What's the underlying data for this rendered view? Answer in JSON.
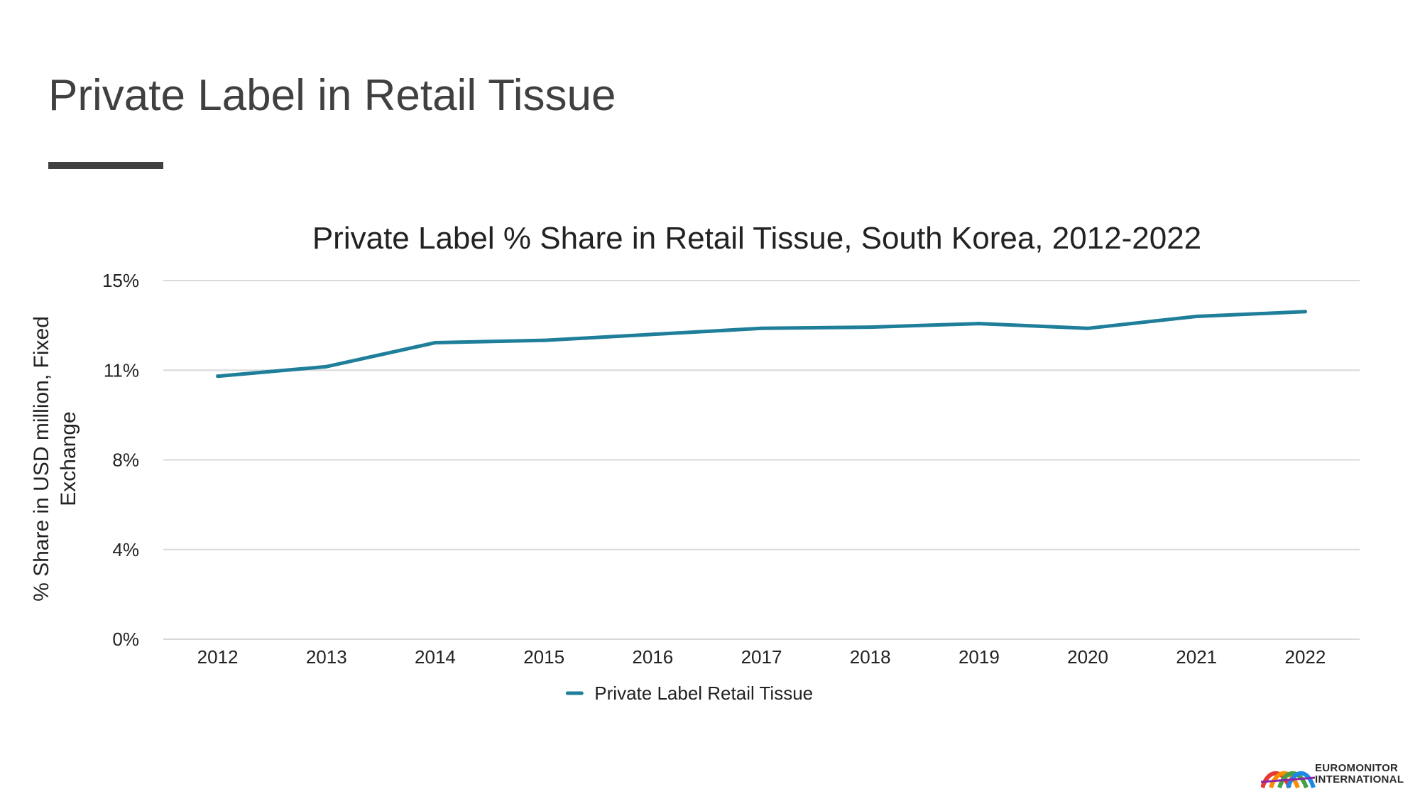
{
  "slide": {
    "title": "Private Label in Retail Tissue"
  },
  "colors": {
    "series_line": "#1f7f9a",
    "gridline": "#d9d9d9",
    "title_text": "#404040",
    "axis_text": "#222222"
  },
  "chart_data": {
    "type": "line",
    "title": "Private Label % Share in Retail Tissue, South Korea, 2012-2022",
    "ylabel": "% Share in USD million, Fixed Exchange",
    "xlabel": "",
    "categories": [
      "2012",
      "2013",
      "2014",
      "2015",
      "2016",
      "2017",
      "2018",
      "2019",
      "2020",
      "2021",
      "2022"
    ],
    "series": [
      {
        "name": "Private Label Retail Tissue",
        "values": [
          11.0,
          11.4,
          12.4,
          12.5,
          12.75,
          13.0,
          13.05,
          13.2,
          13.0,
          13.5,
          13.7
        ]
      }
    ],
    "ylim": [
      0,
      15
    ],
    "yticks": [
      0,
      3.75,
      7.5,
      11.25,
      15
    ],
    "ytick_labels": [
      "0%",
      "4%",
      "8%",
      "11%",
      "15%"
    ],
    "grid": true,
    "legend_position": "bottom"
  },
  "logo": {
    "line1": "EUROMONITOR",
    "line2": "INTERNATIONAL",
    "icon": "rainbow-arcs-logo-icon"
  }
}
